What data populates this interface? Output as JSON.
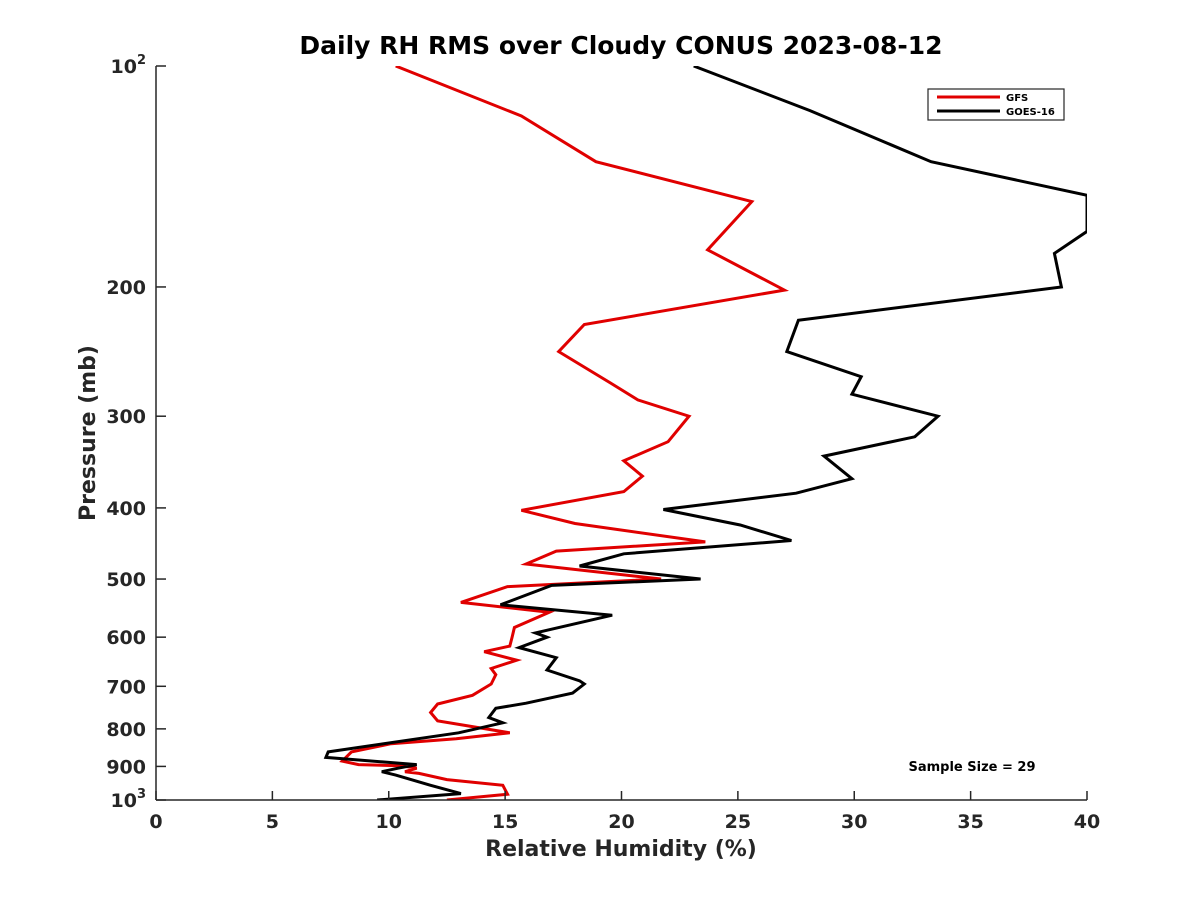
{
  "chart_data": {
    "type": "line",
    "title": "Daily RH RMS over Cloudy CONUS 2023-08-12",
    "xlabel": "Relative Humidity (%)",
    "ylabel": "Pressure (mb)",
    "xlim": [
      0,
      40
    ],
    "ylim": [
      100,
      1000
    ],
    "y_scale": "log",
    "y_reversed": true,
    "x_ticks": [
      0,
      5,
      10,
      15,
      20,
      25,
      30,
      35,
      40
    ],
    "x_tick_labels": [
      "0",
      "5",
      "10",
      "15",
      "20",
      "25",
      "30",
      "35",
      "40"
    ],
    "y_ticks": [
      {
        "value": 100,
        "base": "10",
        "exp": "2"
      },
      {
        "value": 200,
        "base": "200",
        "exp": ""
      },
      {
        "value": 300,
        "base": "300",
        "exp": ""
      },
      {
        "value": 400,
        "base": "400",
        "exp": ""
      },
      {
        "value": 500,
        "base": "500",
        "exp": ""
      },
      {
        "value": 600,
        "base": "600",
        "exp": ""
      },
      {
        "value": 700,
        "base": "700",
        "exp": ""
      },
      {
        "value": 800,
        "base": "800",
        "exp": ""
      },
      {
        "value": 900,
        "base": "900",
        "exp": ""
      },
      {
        "value": 1000,
        "base": "10",
        "exp": "3"
      }
    ],
    "grid": false,
    "legend_position": "top-right",
    "series": [
      {
        "name": "GFS",
        "color": "#e00000",
        "points": [
          [
            10.3,
            100
          ],
          [
            15.7,
            117
          ],
          [
            18.9,
            135
          ],
          [
            25.6,
            153
          ],
          [
            23.7,
            178
          ],
          [
            27.0,
            202
          ],
          [
            18.4,
            225
          ],
          [
            17.3,
            245
          ],
          [
            19.5,
            270
          ],
          [
            20.7,
            285
          ],
          [
            22.9,
            300
          ],
          [
            22.0,
            325
          ],
          [
            20.1,
            345
          ],
          [
            20.9,
            362
          ],
          [
            20.1,
            380
          ],
          [
            15.7,
            403
          ],
          [
            18.0,
            420
          ],
          [
            23.6,
            445
          ],
          [
            17.2,
            458
          ],
          [
            15.9,
            477
          ],
          [
            21.7,
            500
          ],
          [
            15.1,
            512
          ],
          [
            13.1,
            538
          ],
          [
            16.9,
            555
          ],
          [
            15.4,
            582
          ],
          [
            15.3,
            600
          ],
          [
            15.2,
            617
          ],
          [
            14.1,
            628
          ],
          [
            15.5,
            645
          ],
          [
            14.4,
            662
          ],
          [
            14.6,
            675
          ],
          [
            14.4,
            695
          ],
          [
            13.6,
            720
          ],
          [
            12.1,
            740
          ],
          [
            11.8,
            760
          ],
          [
            12.1,
            780
          ],
          [
            15.2,
            810
          ],
          [
            12.9,
            825
          ],
          [
            10.1,
            838
          ],
          [
            8.4,
            860
          ],
          [
            8.0,
            885
          ],
          [
            8.7,
            895
          ],
          [
            10.5,
            898
          ],
          [
            11.2,
            905
          ],
          [
            10.7,
            915
          ],
          [
            11.3,
            920
          ],
          [
            12.5,
            938
          ],
          [
            14.9,
            955
          ],
          [
            15.1,
            982
          ],
          [
            12.5,
            1000
          ]
        ]
      },
      {
        "name": "GOES-16",
        "color": "#000000",
        "points": [
          [
            23.1,
            100
          ],
          [
            28.1,
            115
          ],
          [
            33.3,
            135
          ],
          [
            40.0,
            150
          ],
          [
            40.0,
            168
          ],
          [
            38.6,
            180
          ],
          [
            38.9,
            200
          ],
          [
            27.6,
            222
          ],
          [
            27.1,
            245
          ],
          [
            30.3,
            265
          ],
          [
            29.9,
            280
          ],
          [
            33.6,
            300
          ],
          [
            32.6,
            320
          ],
          [
            28.7,
            340
          ],
          [
            29.9,
            365
          ],
          [
            27.5,
            382
          ],
          [
            21.8,
            402
          ],
          [
            25.1,
            422
          ],
          [
            27.3,
            443
          ],
          [
            20.1,
            462
          ],
          [
            18.2,
            480
          ],
          [
            23.4,
            500
          ],
          [
            17.0,
            510
          ],
          [
            14.8,
            542
          ],
          [
            19.6,
            560
          ],
          [
            16.3,
            592
          ],
          [
            16.8,
            600
          ],
          [
            15.6,
            620
          ],
          [
            17.2,
            640
          ],
          [
            16.8,
            665
          ],
          [
            18.2,
            688
          ],
          [
            18.4,
            695
          ],
          [
            17.9,
            715
          ],
          [
            15.9,
            738
          ],
          [
            14.6,
            750
          ],
          [
            14.3,
            772
          ],
          [
            14.9,
            785
          ],
          [
            13.0,
            810
          ],
          [
            7.4,
            860
          ],
          [
            7.3,
            875
          ],
          [
            11.2,
            895
          ],
          [
            10.4,
            905
          ],
          [
            9.7,
            915
          ],
          [
            10.3,
            925
          ],
          [
            11.8,
            955
          ],
          [
            13.1,
            980
          ],
          [
            9.5,
            1000
          ]
        ]
      }
    ],
    "annotations": [
      "Sample Size = 29"
    ]
  }
}
